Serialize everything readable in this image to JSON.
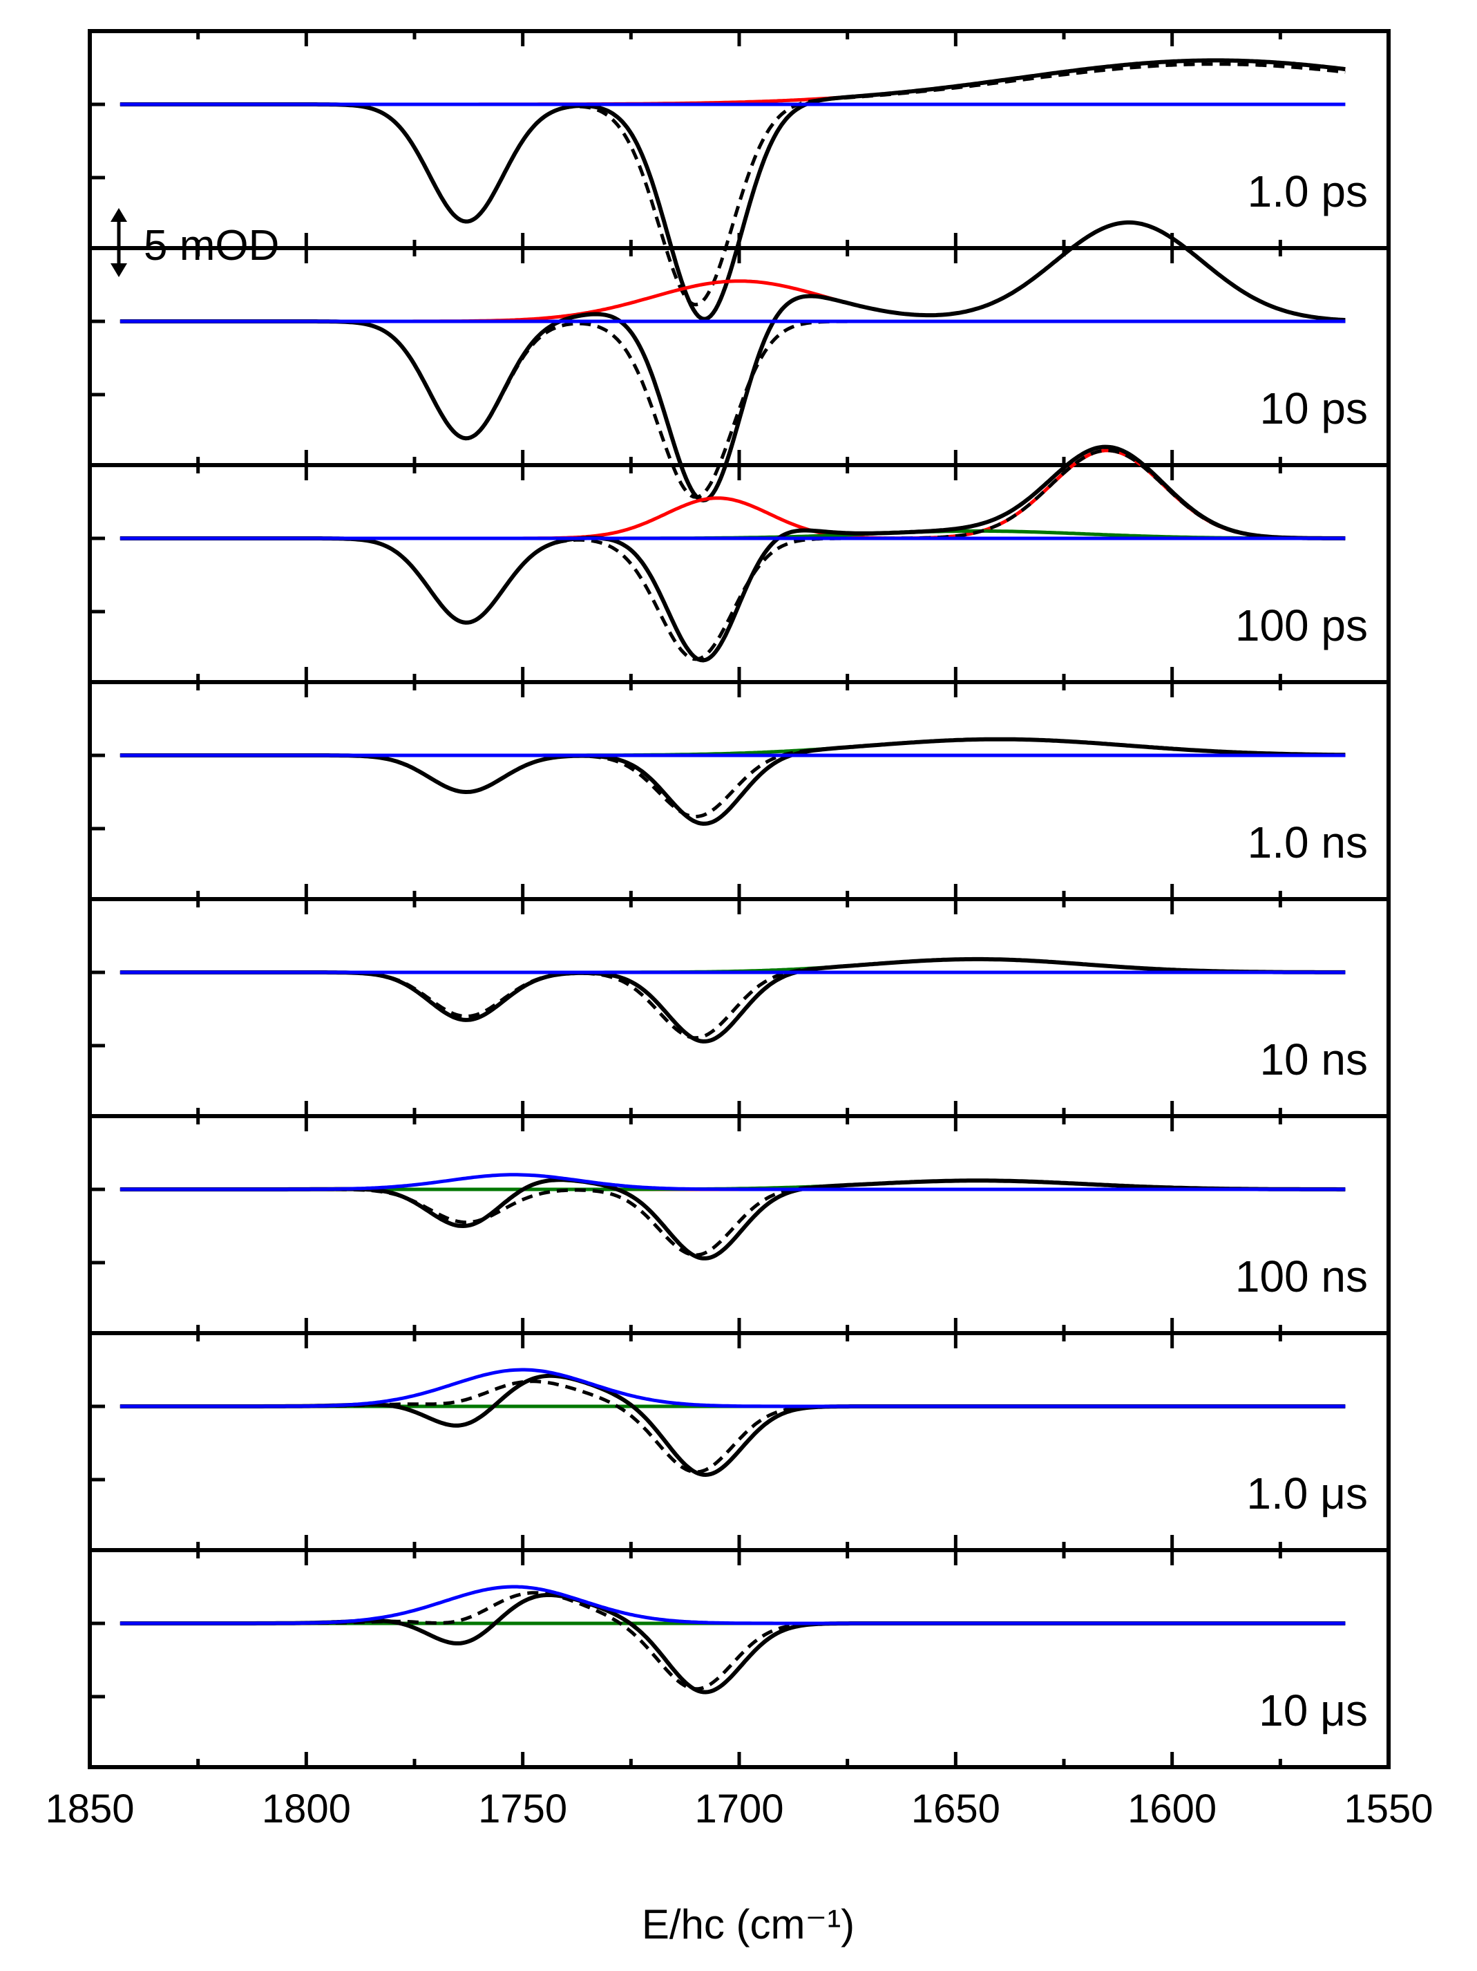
{
  "chart_data": {
    "type": "line",
    "xlabel": "E/hc (cm⁻¹)",
    "xlim": [
      1850,
      1550
    ],
    "x_ticks": [
      "1850",
      "1800",
      "1750",
      "1700",
      "1650",
      "1600",
      "1550"
    ],
    "x_range_plotted": [
      1843,
      1560
    ],
    "y_unit": "mOD",
    "scale_bar": {
      "label": "5 mOD",
      "value_mOD": 5
    },
    "colors": {
      "total": "#000000",
      "fit": "#000000",
      "red": "#ff0000",
      "green": "#007700",
      "blue": "#0000ff"
    },
    "panels": [
      {
        "label": "1.0 ps",
        "bleach": [
          {
            "center": 1763,
            "amp": -1.6,
            "width": 8.5
          },
          {
            "center": 1708,
            "amp": -2.95,
            "width": 8.5
          }
        ],
        "fit": [
          {
            "center": 1763,
            "amp": -1.6,
            "width": 8.5
          },
          {
            "center": 1710,
            "amp": -2.75,
            "width": 8.5
          },
          {
            "center": 1590,
            "amp": 0.55,
            "width": 45
          }
        ],
        "red": [
          {
            "center": 1590,
            "amp": 0.6,
            "width": 45
          }
        ],
        "green": [],
        "blue": []
      },
      {
        "label": "10 ps",
        "bleach": [
          {
            "center": 1763,
            "amp": -1.6,
            "width": 8.5
          },
          {
            "center": 1708,
            "amp": -2.95,
            "width": 8.5
          }
        ],
        "fit": [
          {
            "center": 1763,
            "amp": -1.6,
            "width": 8.5
          },
          {
            "center": 1710,
            "amp": -2.4,
            "width": 8.5
          }
        ],
        "red": [
          {
            "center": 1700,
            "amp": 0.55,
            "width": 20
          },
          {
            "center": 1610,
            "amp": 1.35,
            "width": 17
          }
        ],
        "green": [],
        "blue": []
      },
      {
        "label": "100 ps",
        "bleach": [
          {
            "center": 1763,
            "amp": -1.15,
            "width": 8.5
          },
          {
            "center": 1708,
            "amp": -2.2,
            "width": 8.5
          }
        ],
        "fit": [
          {
            "center": 1763,
            "amp": -1.15,
            "width": 8.5
          },
          {
            "center": 1710,
            "amp": -1.65,
            "width": 8.5
          },
          {
            "center": 1615,
            "amp": 1.2,
            "width": 13
          }
        ],
        "red": [
          {
            "center": 1705,
            "amp": 0.55,
            "width": 12
          },
          {
            "center": 1615,
            "amp": 1.2,
            "width": 13
          }
        ],
        "green": [
          {
            "center": 1645,
            "amp": 0.1,
            "width": 25
          }
        ],
        "blue": []
      },
      {
        "label": "1.0 ns",
        "bleach": [
          {
            "center": 1763,
            "amp": -0.5,
            "width": 8.5
          },
          {
            "center": 1708,
            "amp": -0.95,
            "width": 8.5
          }
        ],
        "fit": [
          {
            "center": 1763,
            "amp": -0.5,
            "width": 8.5
          },
          {
            "center": 1710,
            "amp": -0.85,
            "width": 8.5
          },
          {
            "center": 1640,
            "amp": 0.22,
            "width": 30
          }
        ],
        "red": [],
        "green": [
          {
            "center": 1640,
            "amp": 0.22,
            "width": 30
          }
        ],
        "blue": []
      },
      {
        "label": "10 ns",
        "bleach": [
          {
            "center": 1763,
            "amp": -0.65,
            "width": 8.5
          },
          {
            "center": 1708,
            "amp": -0.95,
            "width": 8.5
          }
        ],
        "fit": [
          {
            "center": 1763,
            "amp": -0.6,
            "width": 8.5
          },
          {
            "center": 1710,
            "amp": -0.9,
            "width": 8.5
          },
          {
            "center": 1645,
            "amp": 0.18,
            "width": 25
          }
        ],
        "red": [],
        "green": [
          {
            "center": 1645,
            "amp": 0.18,
            "width": 25
          }
        ],
        "blue": []
      },
      {
        "label": "100 ns",
        "bleach": [
          {
            "center": 1763,
            "amp": -0.65,
            "width": 8.5
          },
          {
            "center": 1708,
            "amp": -0.95,
            "width": 8.5
          }
        ],
        "fit": [
          {
            "center": 1763,
            "amp": -0.45,
            "width": 8.5
          },
          {
            "center": 1710,
            "amp": -0.9,
            "width": 8.5
          },
          {
            "center": 1645,
            "amp": 0.12,
            "width": 25
          }
        ],
        "red": [],
        "green": [
          {
            "center": 1645,
            "amp": 0.12,
            "width": 25
          }
        ],
        "blue": [
          {
            "center": 1752,
            "amp": 0.2,
            "width": 15
          }
        ]
      },
      {
        "label": "1.0 μs",
        "bleach": [
          {
            "center": 1763,
            "amp": -0.6,
            "width": 8.5
          },
          {
            "center": 1708,
            "amp": -0.95,
            "width": 8.5
          }
        ],
        "fit": [
          {
            "center": 1763,
            "amp": -0.2,
            "width": 8.5
          },
          {
            "center": 1752,
            "amp": 0.4,
            "width": 14
          },
          {
            "center": 1710,
            "amp": -0.9,
            "width": 8.5
          }
        ],
        "red": [],
        "green": [],
        "blue": [
          {
            "center": 1750,
            "amp": 0.5,
            "width": 16
          }
        ]
      },
      {
        "label": "10 μs",
        "bleach": [
          {
            "center": 1763,
            "amp": -0.65,
            "width": 8.5
          },
          {
            "center": 1708,
            "amp": -0.95,
            "width": 8.5
          }
        ],
        "fit": [
          {
            "center": 1763,
            "amp": -0.3,
            "width": 8.5
          },
          {
            "center": 1752,
            "amp": 0.5,
            "width": 14
          },
          {
            "center": 1710,
            "amp": -0.9,
            "width": 8.5
          }
        ],
        "red": [],
        "green": [],
        "blue": [
          {
            "center": 1752,
            "amp": 0.5,
            "width": 16
          }
        ]
      }
    ]
  }
}
